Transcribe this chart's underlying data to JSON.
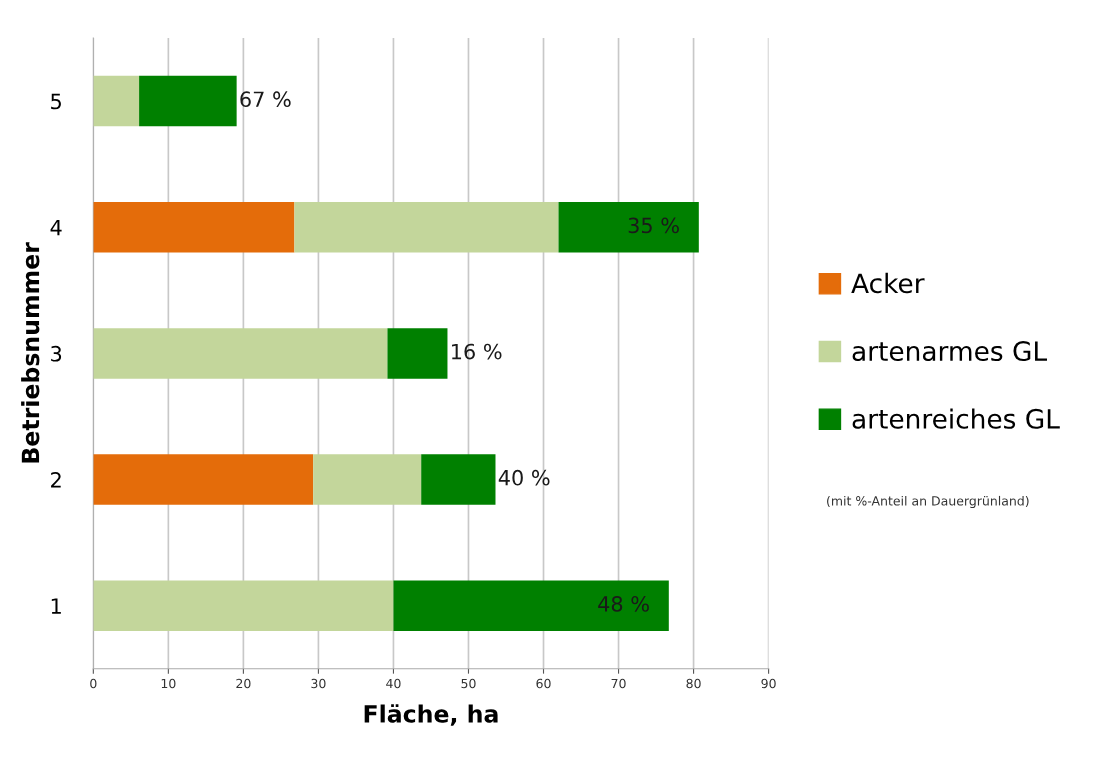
{
  "chart_data": {
    "type": "bar",
    "orientation": "horizontal",
    "stacked": true,
    "xlabel": "Fläche, ha",
    "ylabel": "Betriebsnummer",
    "categories": [
      "5",
      "4",
      "3",
      "2",
      "1"
    ],
    "series": [
      {
        "name": "Acker",
        "color": "#e46c0a",
        "values": [
          null,
          26.8,
          null,
          29.3,
          null
        ]
      },
      {
        "name": "artenarmes GL",
        "color": "#c3d69b",
        "values": [
          6.1,
          35.2,
          39.2,
          14.4,
          40
        ]
      },
      {
        "name": "artenreiches GL",
        "color": "#008000",
        "values": [
          13,
          18.7,
          8,
          9.9,
          36.7
        ]
      }
    ],
    "xlim": [
      0,
      90
    ],
    "xticks": [
      0,
      10,
      20,
      30,
      40,
      50,
      60,
      70,
      80,
      90
    ],
    "grid": "x",
    "legend": "right",
    "annotations": [
      {
        "text": "67 %",
        "x": 19.1,
        "y": "5"
      },
      {
        "text": "35 %",
        "x": 80.7,
        "y": "4"
      },
      {
        "text": "16 %",
        "x": 47.2,
        "y": "3"
      },
      {
        "text": "40 %",
        "x": 53.6,
        "y": "2"
      },
      {
        "text": "48 %",
        "x": 76.7,
        "y": "1"
      },
      "(mit %-Anteil an Dauergrünland)"
    ]
  }
}
